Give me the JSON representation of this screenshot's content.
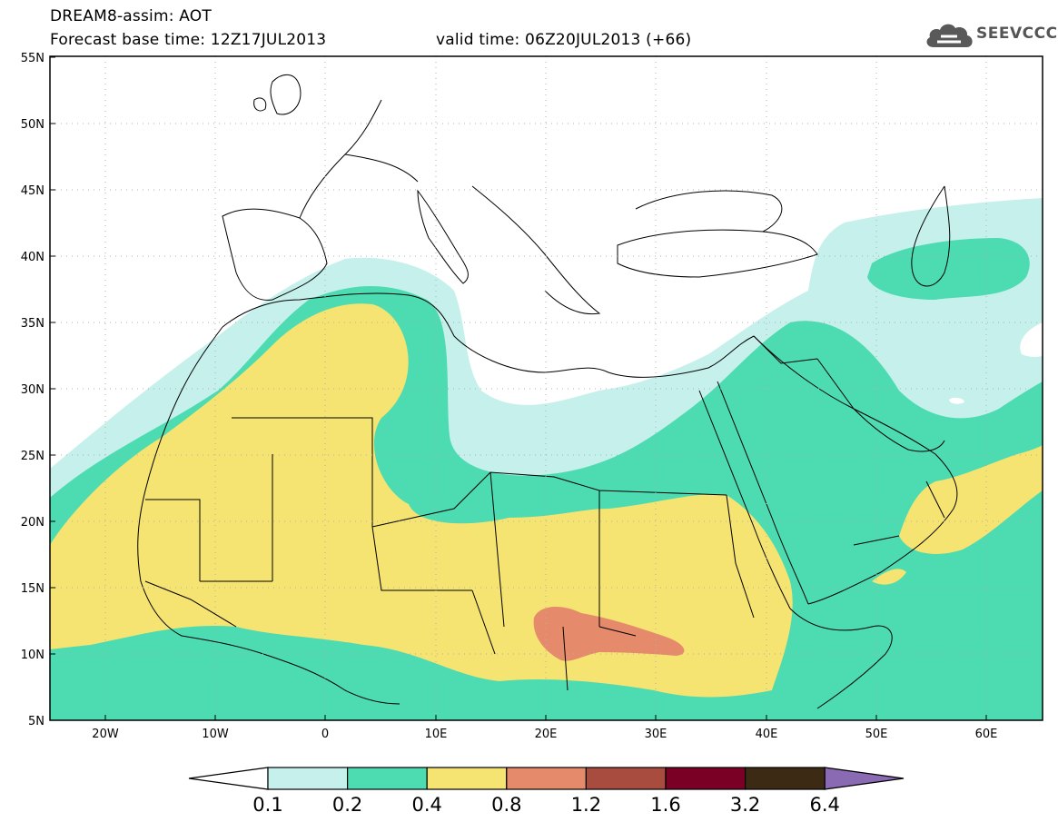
{
  "header": {
    "title": "DREAM8-assim: AOT",
    "base_time": "Forecast base time: 12Z17JUL2013",
    "valid_time": "valid time: 06Z20JUL2013 (+66)"
  },
  "logo": {
    "text": "SEEVCCC",
    "icon": "cloud-logo-icon"
  },
  "map": {
    "lat_labels": [
      "55N",
      "50N",
      "45N",
      "40N",
      "35N",
      "30N",
      "25N",
      "20N",
      "15N",
      "10N",
      "5N"
    ],
    "lon_labels": [
      "20W",
      "10W",
      "0",
      "10E",
      "20E",
      "30E",
      "40E",
      "50E",
      "60E"
    ],
    "grid": true,
    "region": "North Africa, Mediterranean and Middle East"
  },
  "colorbar": {
    "levels": [
      "0.1",
      "0.2",
      "0.4",
      "0.8",
      "1.2",
      "1.6",
      "3.2",
      "6.4"
    ],
    "colors": [
      "#c6f0eb",
      "#4ddbb1",
      "#f5e372",
      "#e58a6b",
      "#a84c40",
      "#7a0026",
      "#3d2a14"
    ],
    "over_color": "#8a6ab2",
    "under_color": "#ffffff"
  }
}
